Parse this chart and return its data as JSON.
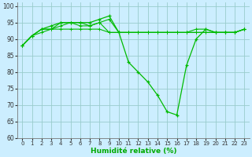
{
  "xlabel": "Humidité relative (%)",
  "background_color": "#cceeff",
  "grid_color": "#99cccc",
  "line_color": "#00bb00",
  "marker_color": "#00bb00",
  "ylim": [
    60,
    101
  ],
  "xlim": [
    -0.5,
    23.5
  ],
  "yticks": [
    60,
    65,
    70,
    75,
    80,
    85,
    90,
    95,
    100
  ],
  "xticks": [
    0,
    1,
    2,
    3,
    4,
    5,
    6,
    7,
    8,
    9,
    10,
    11,
    12,
    13,
    14,
    15,
    16,
    17,
    18,
    19,
    20,
    21,
    22,
    23
  ],
  "series": [
    [
      88,
      91,
      93,
      94,
      95,
      95,
      95,
      95,
      96,
      97,
      92,
      83,
      80,
      77,
      73,
      68,
      67,
      82,
      90,
      93,
      92,
      92,
      92,
      93
    ],
    [
      88,
      91,
      92,
      93,
      95,
      95,
      95,
      94,
      95,
      96,
      92,
      92,
      92,
      92,
      92,
      92,
      92,
      92,
      93,
      93,
      92,
      92,
      92,
      93
    ],
    [
      88,
      91,
      93,
      93,
      94,
      95,
      94,
      94,
      95,
      92,
      92,
      92,
      92,
      92,
      92,
      92,
      92,
      92,
      92,
      92,
      92,
      92,
      92,
      93
    ],
    [
      88,
      91,
      93,
      93,
      93,
      93,
      93,
      93,
      93,
      92,
      92,
      92,
      92,
      92,
      92,
      92,
      92,
      92,
      92,
      92,
      92,
      92,
      92,
      93
    ]
  ],
  "series_markers": [
    true,
    false,
    false,
    false
  ]
}
